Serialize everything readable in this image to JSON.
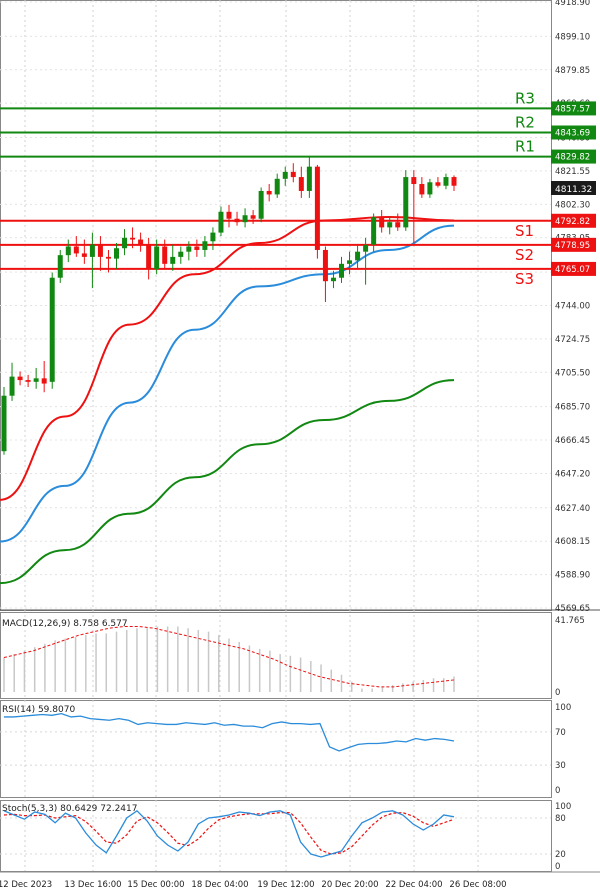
{
  "chart_data": {
    "type": "candlestick",
    "price_panel": {
      "ylim": [
        4569.65,
        4918.9
      ],
      "y_ticks": [
        "4918.90",
        "4899.10",
        "4879.85",
        "4860.60",
        "4840.80",
        "4821.55",
        "4802.30",
        "4783.05",
        "4763.25",
        "4744.00",
        "4724.75",
        "4705.50",
        "4685.70",
        "4666.45",
        "4647.20",
        "4627.40",
        "4608.15",
        "4588.90",
        "4569.65"
      ],
      "candles": [
        {
          "o": 4660,
          "h": 4697,
          "l": 4658,
          "c": 4692
        },
        {
          "o": 4692,
          "h": 4711,
          "l": 4689,
          "c": 4703
        },
        {
          "o": 4703,
          "h": 4706,
          "l": 4698,
          "c": 4701
        },
        {
          "o": 4701,
          "h": 4704,
          "l": 4697,
          "c": 4700
        },
        {
          "o": 4700,
          "h": 4708,
          "l": 4696,
          "c": 4702
        },
        {
          "o": 4702,
          "h": 4712,
          "l": 4694,
          "c": 4699
        },
        {
          "o": 4700,
          "h": 4763,
          "l": 4696,
          "c": 4760
        },
        {
          "o": 4760,
          "h": 4776,
          "l": 4757,
          "c": 4773
        },
        {
          "o": 4773,
          "h": 4782,
          "l": 4769,
          "c": 4778
        },
        {
          "o": 4778,
          "h": 4784,
          "l": 4772,
          "c": 4774
        },
        {
          "o": 4774,
          "h": 4782,
          "l": 4768,
          "c": 4772
        },
        {
          "o": 4772,
          "h": 4786,
          "l": 4754,
          "c": 4779
        },
        {
          "o": 4779,
          "h": 4784,
          "l": 4764,
          "c": 4772
        },
        {
          "o": 4772,
          "h": 4776,
          "l": 4763,
          "c": 4771
        },
        {
          "o": 4771,
          "h": 4780,
          "l": 4765,
          "c": 4777
        },
        {
          "o": 4777,
          "h": 4788,
          "l": 4773,
          "c": 4783
        },
        {
          "o": 4783,
          "h": 4789,
          "l": 4777,
          "c": 4782
        },
        {
          "o": 4782,
          "h": 4786,
          "l": 4775,
          "c": 4779
        },
        {
          "o": 4779,
          "h": 4783,
          "l": 4759,
          "c": 4765
        },
        {
          "o": 4765,
          "h": 4782,
          "l": 4762,
          "c": 4778
        },
        {
          "o": 4778,
          "h": 4782,
          "l": 4765,
          "c": 4768
        },
        {
          "o": 4768,
          "h": 4779,
          "l": 4764,
          "c": 4772
        },
        {
          "o": 4772,
          "h": 4778,
          "l": 4768,
          "c": 4775
        },
        {
          "o": 4775,
          "h": 4781,
          "l": 4770,
          "c": 4778
        },
        {
          "o": 4778,
          "h": 4782,
          "l": 4772,
          "c": 4776
        },
        {
          "o": 4776,
          "h": 4784,
          "l": 4772,
          "c": 4781
        },
        {
          "o": 4781,
          "h": 4789,
          "l": 4776,
          "c": 4786
        },
        {
          "o": 4786,
          "h": 4801,
          "l": 4784,
          "c": 4798
        },
        {
          "o": 4798,
          "h": 4802,
          "l": 4789,
          "c": 4794
        },
        {
          "o": 4794,
          "h": 4798,
          "l": 4790,
          "c": 4792
        },
        {
          "o": 4792,
          "h": 4800,
          "l": 4789,
          "c": 4796
        },
        {
          "o": 4796,
          "h": 4799,
          "l": 4791,
          "c": 4794
        },
        {
          "o": 4794,
          "h": 4812,
          "l": 4792,
          "c": 4810
        },
        {
          "o": 4810,
          "h": 4814,
          "l": 4804,
          "c": 4808
        },
        {
          "o": 4808,
          "h": 4820,
          "l": 4806,
          "c": 4817
        },
        {
          "o": 4817,
          "h": 4824,
          "l": 4813,
          "c": 4821
        },
        {
          "o": 4821,
          "h": 4826,
          "l": 4815,
          "c": 4818
        },
        {
          "o": 4818,
          "h": 4824,
          "l": 4806,
          "c": 4810
        },
        {
          "o": 4810,
          "h": 4830,
          "l": 4806,
          "c": 4824
        },
        {
          "o": 4824,
          "h": 4825,
          "l": 4771,
          "c": 4776
        },
        {
          "o": 4776,
          "h": 4778,
          "l": 4746,
          "c": 4758
        },
        {
          "o": 4758,
          "h": 4764,
          "l": 4754,
          "c": 4760
        },
        {
          "o": 4760,
          "h": 4772,
          "l": 4757,
          "c": 4768
        },
        {
          "o": 4768,
          "h": 4775,
          "l": 4762,
          "c": 4770
        },
        {
          "o": 4770,
          "h": 4779,
          "l": 4765,
          "c": 4775
        },
        {
          "o": 4775,
          "h": 4783,
          "l": 4756,
          "c": 4779
        },
        {
          "o": 4779,
          "h": 4797,
          "l": 4775,
          "c": 4795
        },
        {
          "o": 4795,
          "h": 4799,
          "l": 4786,
          "c": 4789
        },
        {
          "o": 4789,
          "h": 4795,
          "l": 4785,
          "c": 4792
        },
        {
          "o": 4792,
          "h": 4797,
          "l": 4787,
          "c": 4789
        },
        {
          "o": 4789,
          "h": 4822,
          "l": 4787,
          "c": 4818
        },
        {
          "o": 4818,
          "h": 4822,
          "l": 4780,
          "c": 4814
        },
        {
          "o": 4814,
          "h": 4818,
          "l": 4806,
          "c": 4808
        },
        {
          "o": 4808,
          "h": 4817,
          "l": 4806,
          "c": 4815
        },
        {
          "o": 4815,
          "h": 4818,
          "l": 4812,
          "c": 4813
        },
        {
          "o": 4813,
          "h": 4820,
          "l": 4811,
          "c": 4818
        },
        {
          "o": 4818,
          "h": 4819,
          "l": 4810,
          "c": 4813
        }
      ],
      "moving_averages": [
        {
          "color": "#ee1111",
          "values": [
            4632,
            4680,
            4733,
            4762,
            4780,
            4793,
            4795,
            4793
          ]
        },
        {
          "color": "#2a8cdb",
          "values": [
            4608,
            4640,
            4688,
            4730,
            4755,
            4762,
            4776,
            4790
          ]
        },
        {
          "color": "#118811",
          "values": [
            4584,
            4603,
            4624,
            4645,
            4664,
            4678,
            4689,
            4701
          ]
        }
      ],
      "current_price": "4811.32",
      "levels": [
        {
          "name": "R3",
          "value": 4857.57,
          "label": "4857.57",
          "color": "#118811"
        },
        {
          "name": "R2",
          "value": 4843.69,
          "label": "4843.69",
          "color": "#118811"
        },
        {
          "name": "R1",
          "value": 4829.82,
          "label": "4829.82",
          "color": "#118811"
        },
        {
          "name": "S1",
          "value": 4792.82,
          "label": "4792.82",
          "color": "#ee1111"
        },
        {
          "name": "S2",
          "value": 4778.95,
          "label": "4778.95",
          "color": "#ee1111"
        },
        {
          "name": "S3",
          "value": 4765.07,
          "label": "4765.07",
          "color": "#ee1111"
        }
      ]
    },
    "macd_panel": {
      "title": "MACD(12,26,9) 8.758 6.577",
      "y_ticks": [
        "41.765",
        "0"
      ],
      "ylim": [
        0,
        41.765
      ],
      "histogram": [
        20,
        22,
        24,
        26,
        28,
        30,
        31,
        32,
        33,
        34,
        34,
        35,
        36,
        37,
        37,
        38,
        38,
        38,
        37,
        36,
        35,
        33,
        31,
        29,
        27,
        25,
        24,
        22,
        21,
        20,
        18,
        16,
        13,
        10,
        6,
        2,
        2,
        3,
        4,
        5,
        6,
        7,
        8,
        8,
        9
      ],
      "signal": [
        20,
        22,
        24,
        27,
        30,
        33,
        35,
        37,
        38,
        38,
        37,
        35,
        33,
        31,
        29,
        27,
        25,
        22,
        19,
        15,
        12,
        9,
        7,
        5,
        4,
        3,
        3,
        4,
        5,
        6,
        7
      ]
    },
    "rsi_panel": {
      "title": "RSI(14) 59.8070",
      "y_ticks": [
        "100",
        "70",
        "30",
        "0"
      ],
      "ylim": [
        0,
        100
      ],
      "values": [
        88,
        88,
        89,
        90,
        91,
        90,
        92,
        88,
        89,
        86,
        85,
        84,
        86,
        84,
        79,
        81,
        80,
        79,
        79,
        81,
        80,
        79,
        81,
        78,
        79,
        77,
        77,
        75,
        80,
        82,
        80,
        80,
        79,
        80,
        52,
        47,
        51,
        55,
        56,
        56,
        57,
        59,
        58,
        62,
        60,
        62,
        61,
        59
      ]
    },
    "stoch_panel": {
      "title": "Stoch(5,3,3) 80.6429 72.2417",
      "y_ticks": [
        "100",
        "80",
        "20",
        "0"
      ],
      "ylim": [
        0,
        100
      ],
      "k_values": [
        92,
        85,
        78,
        90,
        86,
        72,
        88,
        80,
        55,
        35,
        22,
        50,
        80,
        92,
        75,
        50,
        35,
        25,
        40,
        70,
        80,
        82,
        85,
        90,
        88,
        84,
        90,
        92,
        85,
        40,
        20,
        15,
        20,
        25,
        50,
        72,
        80,
        90,
        92,
        85,
        70,
        60,
        70,
        85,
        82
      ],
      "d_values": [
        85,
        86,
        84,
        84,
        85,
        80,
        82,
        84,
        74,
        58,
        40,
        38,
        52,
        75,
        82,
        72,
        56,
        38,
        34,
        45,
        63,
        77,
        82,
        85,
        87,
        87,
        87,
        89,
        89,
        72,
        48,
        26,
        20,
        22,
        32,
        50,
        68,
        82,
        88,
        89,
        83,
        72,
        66,
        72,
        78
      ]
    },
    "x_tick_labels": [
      "12 Dec 2023",
      "13 Dec 16:00",
      "15 Dec 00:00",
      "18 Dec 04:00",
      "19 Dec 12:00",
      "20 Dec 20:00",
      "22 Dec 04:00",
      "26 Dec 08:00"
    ],
    "grid": true
  },
  "colors": {
    "bull": "#118811",
    "bear": "#ee1111",
    "resistance": "#118811",
    "support": "#ee1111",
    "macd_hist": "#c8c8c8",
    "macd_signal": "#ee1111",
    "rsi": "#2a8cdb",
    "stoch_k": "#2a8cdb",
    "stoch_d": "#ee1111"
  }
}
